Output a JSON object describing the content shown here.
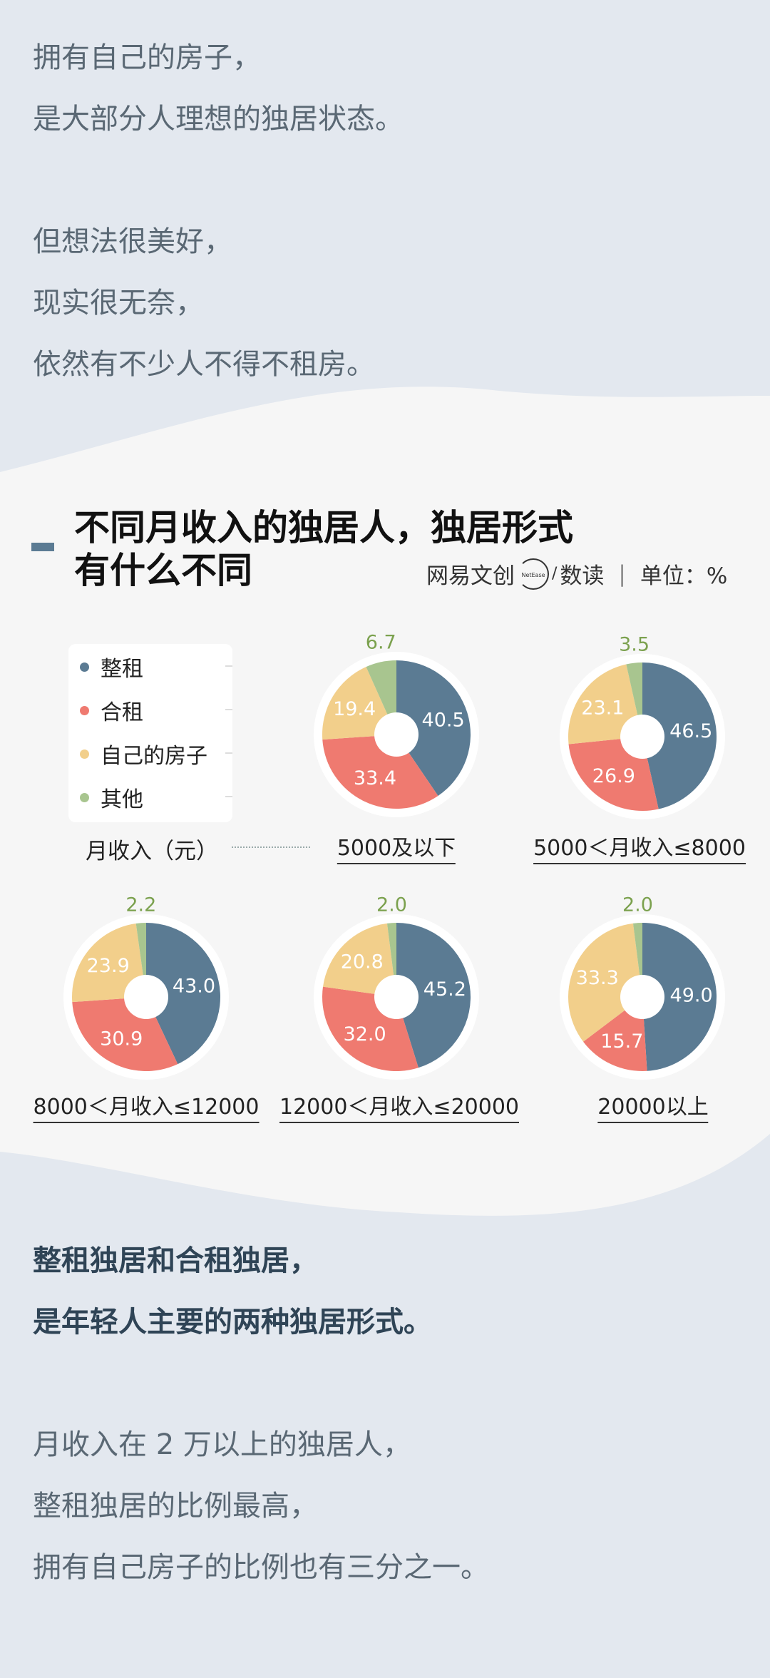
{
  "intro": {
    "lines": [
      "拥有自己的房子，",
      "是大部分人理想的独居状态。",
      "",
      "但想法很美好，",
      "现实很无奈，",
      "依然有不少人不得不租房。"
    ]
  },
  "header": {
    "title_line1": "不同月收入的独居人，独居形式",
    "title_line2": "有什么不同",
    "source_left": "网易文创",
    "logo_text": "NetEase",
    "source_right": "数读",
    "unit": "单位：%"
  },
  "colors": {
    "整租": "#5b7b93",
    "合租": "#ef7a70",
    "自己的房子": "#f2cf8b",
    "其他": "#a8c58f",
    "other_label": "#7ba14e",
    "panel": "#f6f6f6",
    "page": "#e3e8ef"
  },
  "legend": {
    "items": [
      "整租",
      "合租",
      "自己的房子",
      "其他"
    ]
  },
  "income_label": "月收入（元）",
  "chart_data": [
    {
      "type": "pie",
      "title": "5000及以下",
      "labels": [
        "整租",
        "合租",
        "自己的房子",
        "其他"
      ],
      "values": [
        40.5,
        33.4,
        19.4,
        6.7
      ]
    },
    {
      "type": "pie",
      "title": "5000＜月收入≤8000",
      "labels": [
        "整租",
        "合租",
        "自己的房子",
        "其他"
      ],
      "values": [
        46.5,
        26.9,
        23.1,
        3.5
      ]
    },
    {
      "type": "pie",
      "title": "8000＜月收入≤12000",
      "labels": [
        "整租",
        "合租",
        "自己的房子",
        "其他"
      ],
      "values": [
        43.0,
        30.9,
        23.9,
        2.2
      ]
    },
    {
      "type": "pie",
      "title": "12000＜月收入≤20000",
      "labels": [
        "整租",
        "合租",
        "自己的房子",
        "其他"
      ],
      "values": [
        45.2,
        32.0,
        20.8,
        2.0
      ]
    },
    {
      "type": "pie",
      "title": "20000以上",
      "labels": [
        "整租",
        "合租",
        "自己的房子",
        "其他"
      ],
      "values": [
        49.0,
        15.7,
        33.3,
        2.0
      ]
    }
  ],
  "conclusion": {
    "bold_lines": [
      "整租独居和合租独居，",
      "是年轻人主要的两种独居形式。"
    ],
    "lines": [
      "月收入在 2 万以上的独居人，",
      "整租独居的比例最高，",
      "拥有自己房子的比例也有三分之一。"
    ]
  }
}
